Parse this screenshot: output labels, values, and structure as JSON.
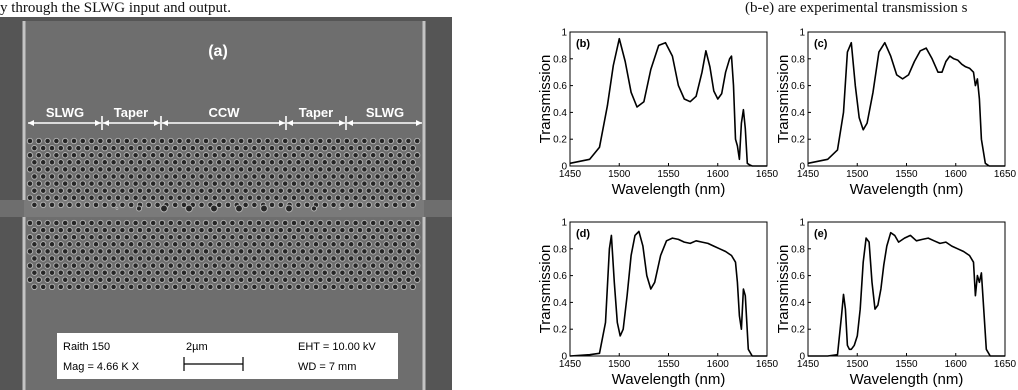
{
  "caption": {
    "left_text": "y through the SLWG input and output.",
    "right_text": "(b-e) are experimental transmission s"
  },
  "sem": {
    "panel_label": "(a)",
    "labels": {
      "slwg_left": "SLWG",
      "taper_left": "Taper",
      "ccw": "CCW",
      "taper_right": "Taper",
      "slwg_right": "SLWG"
    },
    "info": {
      "instrument": "Raith 150",
      "mag": "Mag =  4.66 K X",
      "scale": "2µm",
      "eht": "EHT = 10.00 kV",
      "wd": "WD =   7 mm"
    },
    "colors": {
      "background": "#555555",
      "slab": "#6e6e6e",
      "hole": "#262626",
      "rim": "#b7b7b7"
    }
  },
  "chart_data": [
    {
      "type": "line",
      "panel": "(b)",
      "xlabel": "Wavelength (nm)",
      "ylabel": "Transmission",
      "xlim": [
        1450,
        1650
      ],
      "ylim": [
        0,
        1
      ],
      "x_ticks": [
        "1450",
        "1500",
        "1550",
        "1600",
        "1650"
      ],
      "y_ticks": [
        "0",
        "0.2",
        "0.4",
        "0.6",
        "0.8",
        "1"
      ],
      "x": [
        1450,
        1470,
        1480,
        1488,
        1494,
        1500,
        1506,
        1512,
        1518,
        1525,
        1532,
        1540,
        1547,
        1554,
        1560,
        1566,
        1572,
        1578,
        1584,
        1588,
        1592,
        1596,
        1600,
        1604,
        1608,
        1612,
        1614,
        1616,
        1618,
        1620,
        1622,
        1624,
        1626,
        1628,
        1630,
        1632,
        1635,
        1650
      ],
      "y": [
        0.02,
        0.05,
        0.14,
        0.45,
        0.75,
        0.95,
        0.78,
        0.55,
        0.44,
        0.48,
        0.72,
        0.9,
        0.92,
        0.82,
        0.6,
        0.5,
        0.48,
        0.52,
        0.7,
        0.86,
        0.74,
        0.56,
        0.5,
        0.54,
        0.7,
        0.8,
        0.82,
        0.6,
        0.2,
        0.15,
        0.05,
        0.32,
        0.42,
        0.28,
        0.02,
        0.01,
        0.0,
        0.0
      ]
    },
    {
      "type": "line",
      "panel": "(c)",
      "xlabel": "Wavelength (nm)",
      "ylabel": "Transmission",
      "xlim": [
        1450,
        1650
      ],
      "ylim": [
        0,
        1
      ],
      "x_ticks": [
        "1450",
        "1500",
        "1550",
        "1600",
        "1650"
      ],
      "y_ticks": [
        "0",
        "0.2",
        "0.4",
        "0.6",
        "0.8",
        "1"
      ],
      "x": [
        1450,
        1470,
        1480,
        1486,
        1490,
        1494,
        1498,
        1502,
        1506,
        1510,
        1516,
        1522,
        1528,
        1534,
        1540,
        1546,
        1552,
        1558,
        1564,
        1570,
        1576,
        1582,
        1586,
        1590,
        1594,
        1598,
        1602,
        1606,
        1610,
        1614,
        1618,
        1620,
        1622,
        1624,
        1626,
        1630,
        1634,
        1650
      ],
      "y": [
        0.02,
        0.05,
        0.12,
        0.4,
        0.85,
        0.92,
        0.6,
        0.36,
        0.27,
        0.32,
        0.55,
        0.85,
        0.92,
        0.82,
        0.68,
        0.65,
        0.68,
        0.78,
        0.86,
        0.88,
        0.8,
        0.7,
        0.7,
        0.78,
        0.82,
        0.8,
        0.79,
        0.76,
        0.74,
        0.73,
        0.7,
        0.6,
        0.65,
        0.5,
        0.2,
        0.02,
        0.0,
        0.0
      ]
    },
    {
      "type": "line",
      "panel": "(d)",
      "xlabel": "Wavelength (nm)",
      "ylabel": "Transmission",
      "xlim": [
        1450,
        1650
      ],
      "ylim": [
        0,
        1
      ],
      "x_ticks": [
        "1450",
        "1500",
        "1550",
        "1600",
        "1650"
      ],
      "y_ticks": [
        "0",
        "0.2",
        "0.4",
        "0.6",
        "0.8",
        "1"
      ],
      "x": [
        1450,
        1470,
        1480,
        1486,
        1490,
        1492,
        1495,
        1498,
        1501,
        1504,
        1508,
        1512,
        1516,
        1520,
        1524,
        1528,
        1532,
        1536,
        1542,
        1548,
        1554,
        1560,
        1566,
        1572,
        1578,
        1584,
        1590,
        1596,
        1602,
        1608,
        1614,
        1618,
        1620,
        1622,
        1624,
        1626,
        1628,
        1631,
        1635,
        1650
      ],
      "y": [
        0.0,
        0.01,
        0.02,
        0.25,
        0.8,
        0.9,
        0.55,
        0.25,
        0.15,
        0.2,
        0.45,
        0.75,
        0.9,
        0.93,
        0.82,
        0.6,
        0.5,
        0.55,
        0.75,
        0.86,
        0.88,
        0.87,
        0.85,
        0.84,
        0.86,
        0.85,
        0.84,
        0.82,
        0.8,
        0.78,
        0.75,
        0.7,
        0.55,
        0.3,
        0.2,
        0.5,
        0.45,
        0.05,
        0.0,
        0.0
      ]
    },
    {
      "type": "line",
      "panel": "(e)",
      "xlabel": "Wavelength (nm)",
      "ylabel": "Transmission",
      "xlim": [
        1450,
        1650
      ],
      "ylim": [
        0,
        1
      ],
      "x_ticks": [
        "1450",
        "1500",
        "1550",
        "1600",
        "1650"
      ],
      "y_ticks": [
        "0",
        "0.2",
        "0.4",
        "0.6",
        "0.8",
        "1"
      ],
      "x": [
        1450,
        1470,
        1480,
        1484,
        1486,
        1488,
        1490,
        1492,
        1494,
        1497,
        1500,
        1503,
        1506,
        1509,
        1512,
        1515,
        1518,
        1521,
        1524,
        1527,
        1530,
        1534,
        1538,
        1542,
        1548,
        1554,
        1560,
        1566,
        1572,
        1578,
        1584,
        1590,
        1596,
        1602,
        1608,
        1614,
        1618,
        1620,
        1622,
        1624,
        1626,
        1628,
        1631,
        1635,
        1650
      ],
      "y": [
        0.0,
        0.0,
        0.01,
        0.3,
        0.46,
        0.35,
        0.08,
        0.05,
        0.05,
        0.08,
        0.15,
        0.35,
        0.7,
        0.88,
        0.85,
        0.55,
        0.35,
        0.38,
        0.5,
        0.68,
        0.82,
        0.92,
        0.9,
        0.85,
        0.88,
        0.9,
        0.86,
        0.87,
        0.88,
        0.86,
        0.84,
        0.85,
        0.82,
        0.8,
        0.78,
        0.75,
        0.7,
        0.45,
        0.6,
        0.55,
        0.62,
        0.4,
        0.05,
        0.0,
        0.0
      ]
    }
  ]
}
